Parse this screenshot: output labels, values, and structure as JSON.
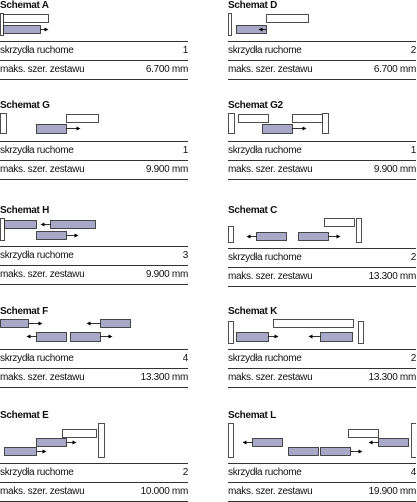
{
  "cards": [
    {
      "title": "Schemat A",
      "rows": [
        [
          "skrzydła ruchome",
          "1"
        ],
        [
          "maks. szer. zestawu",
          "6.700 mm"
        ]
      ]
    },
    {
      "title": "Schemat D",
      "rows": [
        [
          "skrzydła ruchome",
          "2"
        ],
        [
          "maks. szer. zestawu",
          "6.700 mm"
        ]
      ]
    },
    {
      "title": "Schemat G",
      "rows": [
        [
          "skrzydła ruchome",
          "1"
        ],
        [
          "maks. szer. zestawu",
          "9.900 mm"
        ]
      ]
    },
    {
      "title": "Schemat G2",
      "rows": [
        [
          "skrzydła ruchome",
          "1"
        ],
        [
          "maks. szer. zestawu",
          "9.900 mm"
        ]
      ]
    },
    {
      "title": "Schemat H",
      "rows": [
        [
          "skrzydła ruchome",
          "3"
        ],
        [
          "maks. szer. zestawu",
          "9.900 mm"
        ]
      ]
    },
    {
      "title": "Schemat C",
      "rows": [
        [
          "skrzydła ruchome",
          "2"
        ],
        [
          "maks. szer. zestawu",
          "13.300 mm"
        ]
      ]
    },
    {
      "title": "Schemat F",
      "rows": [
        [
          "skrzydła ruchome",
          "4"
        ],
        [
          "maks. szer. zestawu",
          "13.300 mm"
        ]
      ]
    },
    {
      "title": "Schemat K",
      "rows": [
        [
          "skrzydła ruchome",
          "2"
        ],
        [
          "maks. szer. zestawu",
          "13.300 mm"
        ]
      ]
    },
    {
      "title": "Schemat E",
      "rows": [
        [
          "skrzydła ruchome",
          "2"
        ],
        [
          "maks. szer. zestawu",
          "10.000 mm"
        ]
      ]
    },
    {
      "title": "Schemat L",
      "rows": [
        [
          "skrzydła ruchome",
          "4"
        ],
        [
          "maks. szer. zestawu",
          "19.900 mm"
        ]
      ]
    }
  ]
}
